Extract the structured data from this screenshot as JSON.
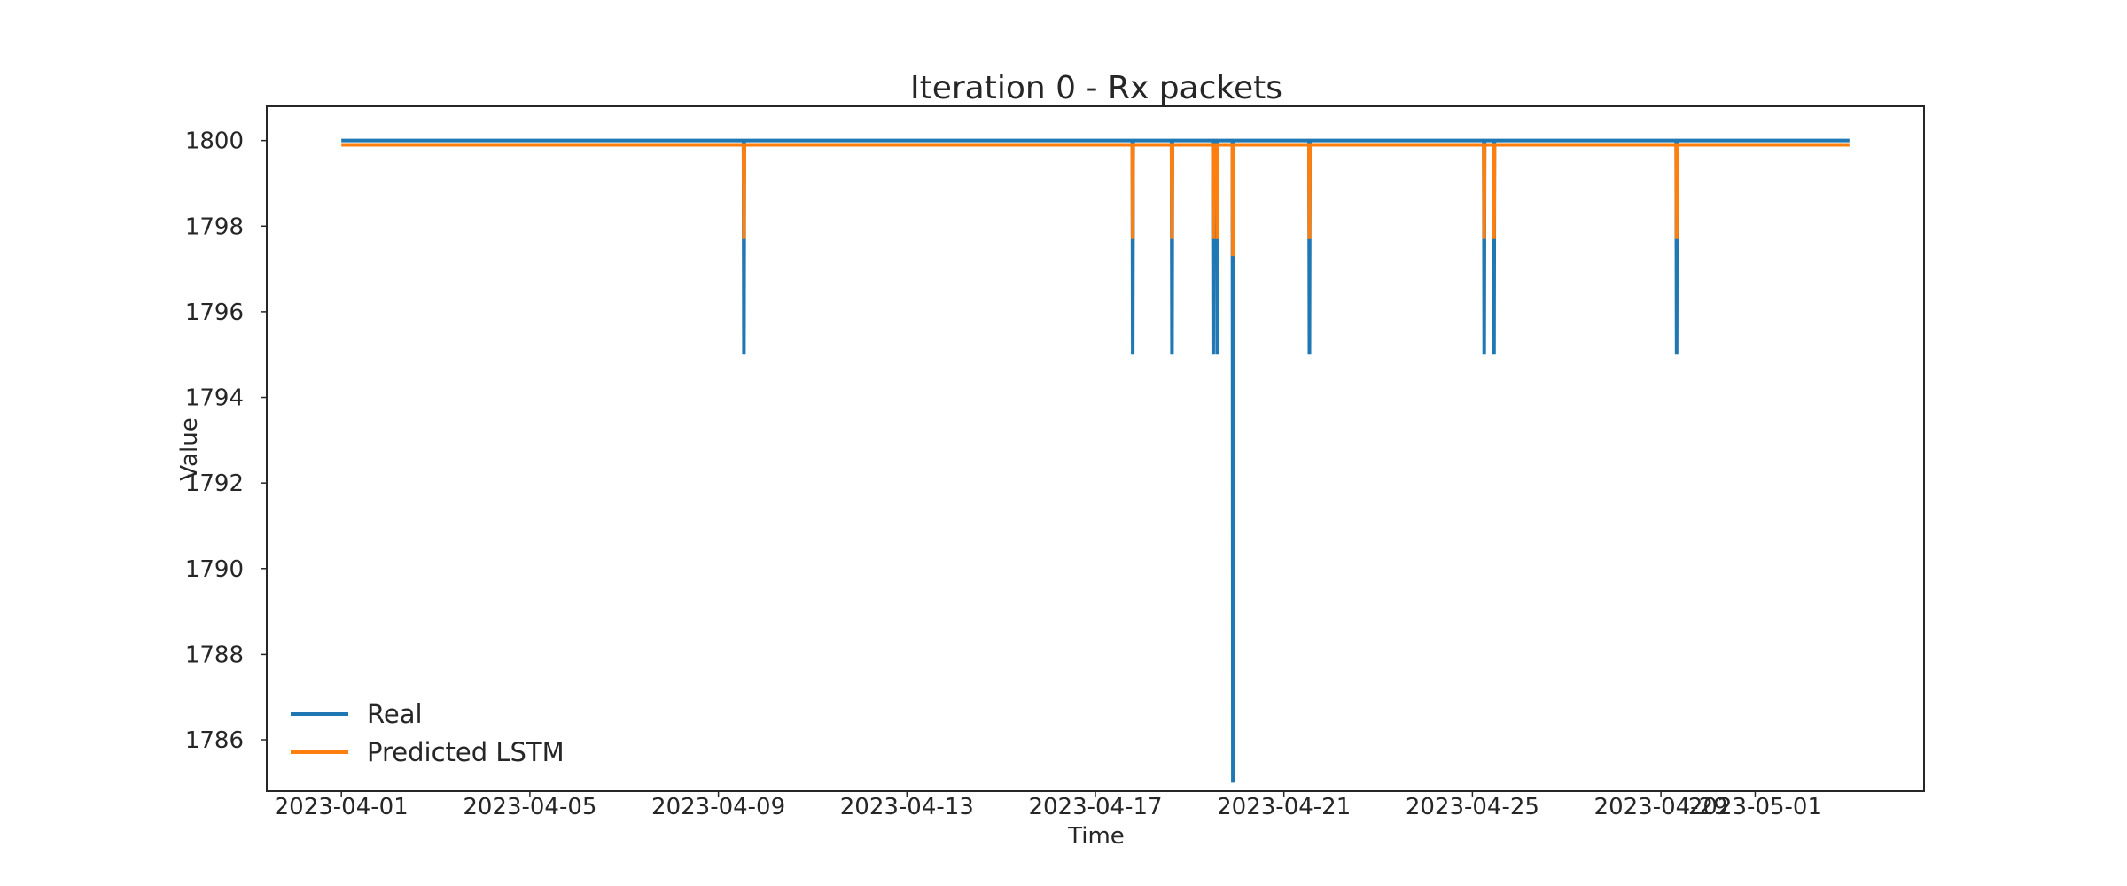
{
  "chart_data": {
    "type": "line",
    "title": "Iteration 0 - Rx packets",
    "xlabel": "Time",
    "ylabel": "Value",
    "x_ticks": [
      "2023-04-01",
      "2023-04-05",
      "2023-04-09",
      "2023-04-13",
      "2023-04-17",
      "2023-04-21",
      "2023-04-25",
      "2023-04-29",
      "2023-05-01"
    ],
    "y_ticks": [
      1786,
      1788,
      1790,
      1792,
      1794,
      1796,
      1798,
      1800
    ],
    "xlim": [
      "2023-03-30T10:00",
      "2023-05-04T14:00"
    ],
    "ylim": [
      1784.8,
      1800.8
    ],
    "grid": false,
    "legend_position": "lower-left",
    "x_range": [
      "2023-04-01",
      "2023-05-03"
    ],
    "baseline": 1800,
    "series": [
      {
        "name": "Real",
        "color": "#1f77b4",
        "baseline": 1800,
        "dips": [
          {
            "date": "2023-04-09T13:00",
            "value": 1795
          },
          {
            "date": "2023-04-17T19:00",
            "value": 1795
          },
          {
            "date": "2023-04-18T15:00",
            "value": 1795
          },
          {
            "date": "2023-04-19T12:00",
            "value": 1795
          },
          {
            "date": "2023-04-19T14:00",
            "value": 1795
          },
          {
            "date": "2023-04-19T22:00",
            "value": 1785
          },
          {
            "date": "2023-04-21T13:00",
            "value": 1795
          },
          {
            "date": "2023-04-25T06:00",
            "value": 1795
          },
          {
            "date": "2023-04-25T11:00",
            "value": 1795
          },
          {
            "date": "2023-04-29T08:00",
            "value": 1795
          }
        ]
      },
      {
        "name": "Predicted LSTM",
        "color": "#ff7f0e",
        "baseline": 1799.9,
        "dips": [
          {
            "date": "2023-04-09T13:00",
            "value": 1797.7
          },
          {
            "date": "2023-04-17T19:00",
            "value": 1797.7
          },
          {
            "date": "2023-04-18T15:00",
            "value": 1797.7
          },
          {
            "date": "2023-04-19T12:00",
            "value": 1797.7
          },
          {
            "date": "2023-04-19T14:00",
            "value": 1797.7
          },
          {
            "date": "2023-04-19T22:00",
            "value": 1797.3
          },
          {
            "date": "2023-04-21T13:00",
            "value": 1797.7
          },
          {
            "date": "2023-04-25T06:00",
            "value": 1797.7
          },
          {
            "date": "2023-04-25T11:00",
            "value": 1797.7
          },
          {
            "date": "2023-04-29T08:00",
            "value": 1797.7
          }
        ]
      }
    ]
  }
}
